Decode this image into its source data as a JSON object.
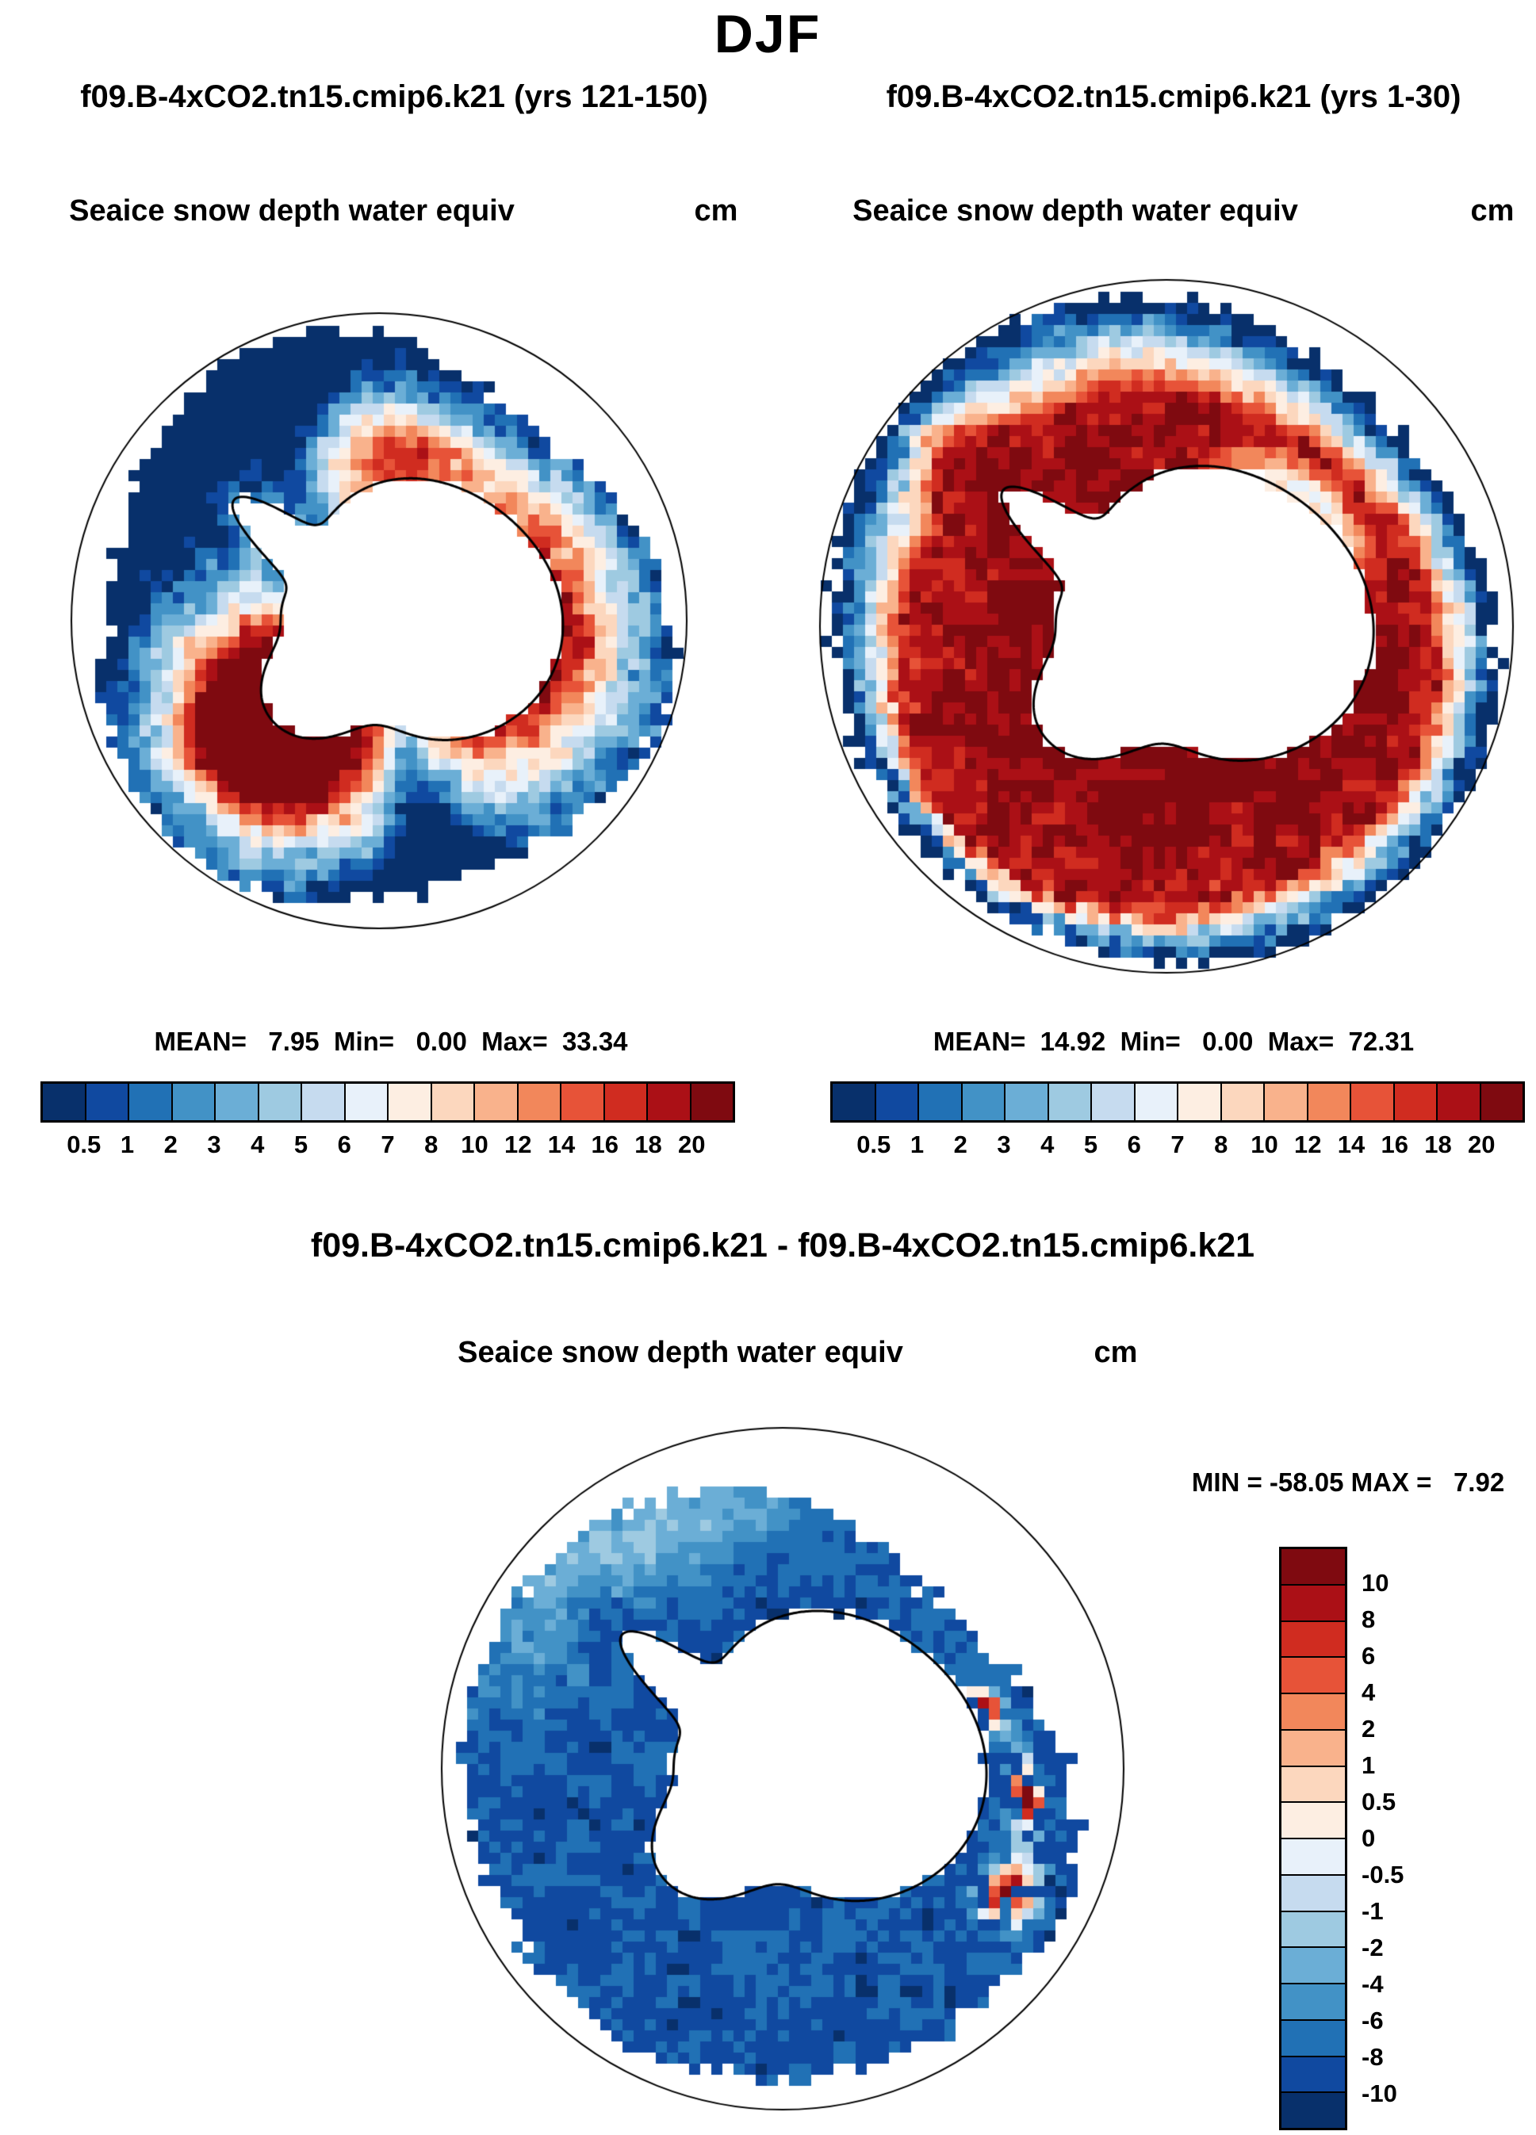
{
  "title": "DJF",
  "panels": {
    "left": {
      "subtitle": "f09.B-4xCO2.tn15.cmip6.k21 (yrs 121-150)",
      "field_label": "Seaice snow depth water equiv",
      "units": "cm",
      "stats_text": "MEAN=   7.95  Min=   0.00  Max=  33.34"
    },
    "right": {
      "subtitle": "f09.B-4xCO2.tn15.cmip6.k21 (yrs 1-30)",
      "field_label": "Seaice snow depth water equiv",
      "units": "cm",
      "stats_text": "MEAN=  14.92  Min=   0.00  Max=  72.31"
    },
    "diff": {
      "subtitle": "f09.B-4xCO2.tn15.cmip6.k21 - f09.B-4xCO2.tn15.cmip6.k21",
      "field_label": "Seaice snow depth water equiv",
      "units": "cm",
      "stats_text": "MIN = -58.05 MAX =   7.92"
    }
  },
  "chart_data": {
    "type": "heatmap",
    "season": "DJF",
    "projection": "south-polar-stereographic",
    "variable": "Seaice snow depth water equiv",
    "units": "cm",
    "palette": [
      "#08306b",
      "#1049a0",
      "#2171b5",
      "#4292c6",
      "#6baed6",
      "#9ecae1",
      "#c6dbef",
      "#e8f1fa",
      "#fdeee2",
      "#fcd7be",
      "#f9b28c",
      "#f2875b",
      "#e75338",
      "#d02c20",
      "#ab1016",
      "#7f0a10"
    ],
    "maps": [
      {
        "id": "map-left",
        "case": "f09.B-4xCO2.tn15.cmip6.k21",
        "period": "yrs 121-150",
        "mean": 7.95,
        "min": 0.0,
        "max": 33.34,
        "colorbar_levels": [
          0.5,
          1,
          2,
          3,
          4,
          5,
          6,
          7,
          8,
          10,
          12,
          14,
          16,
          18,
          20
        ],
        "colorbar_labels": [
          "0.5",
          "1",
          "2",
          "3",
          "4",
          "5",
          "6",
          "7",
          "8",
          "10",
          "12",
          "14",
          "16",
          "18",
          "20"
        ]
      },
      {
        "id": "map-right",
        "case": "f09.B-4xCO2.tn15.cmip6.k21",
        "period": "yrs 1-30",
        "mean": 14.92,
        "min": 0.0,
        "max": 72.31,
        "colorbar_levels": [
          0.5,
          1,
          2,
          3,
          4,
          5,
          6,
          7,
          8,
          10,
          12,
          14,
          16,
          18,
          20
        ],
        "colorbar_labels": [
          "0.5",
          "1",
          "2",
          "3",
          "4",
          "5",
          "6",
          "7",
          "8",
          "10",
          "12",
          "14",
          "16",
          "18",
          "20"
        ]
      },
      {
        "id": "map-diff",
        "case": "f09.B-4xCO2.tn15.cmip6.k21 - f09.B-4xCO2.tn15.cmip6.k21",
        "min": -58.05,
        "max": 7.92,
        "colorbar_levels": [
          10,
          8,
          6,
          4,
          2,
          1,
          0.5,
          0,
          -0.5,
          -1,
          -2,
          -4,
          -6,
          -8,
          -10
        ],
        "colorbar_labels_top_to_bottom": [
          "10",
          "8",
          "6",
          "4",
          "2",
          "1",
          "0.5",
          "0",
          "-0.5",
          "-1",
          "-2",
          "-4",
          "-6",
          "-8",
          "-10"
        ]
      }
    ]
  }
}
